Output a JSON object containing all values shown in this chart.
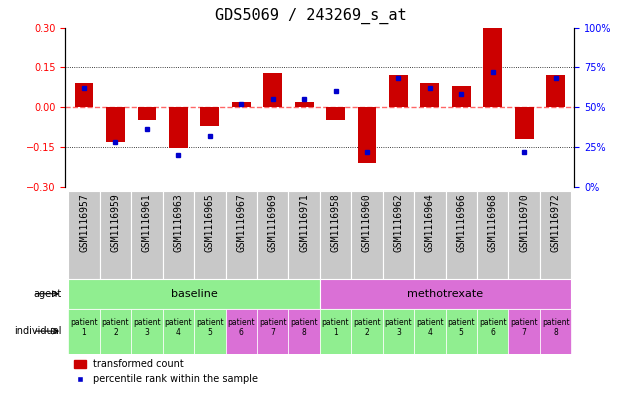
{
  "title": "GDS5069 / 243269_s_at",
  "samples": [
    "GSM1116957",
    "GSM1116959",
    "GSM1116961",
    "GSM1116963",
    "GSM1116965",
    "GSM1116967",
    "GSM1116969",
    "GSM1116971",
    "GSM1116958",
    "GSM1116960",
    "GSM1116962",
    "GSM1116964",
    "GSM1116966",
    "GSM1116968",
    "GSM1116970",
    "GSM1116972"
  ],
  "red_values": [
    0.09,
    -0.13,
    -0.05,
    -0.155,
    -0.07,
    0.02,
    0.13,
    0.02,
    -0.05,
    -0.21,
    0.12,
    0.09,
    0.08,
    0.3,
    -0.12,
    0.12
  ],
  "blue_percentiles": [
    62,
    28,
    36,
    20,
    32,
    52,
    55,
    55,
    60,
    22,
    68,
    62,
    58,
    72,
    22,
    68
  ],
  "ylim": [
    -0.3,
    0.3
  ],
  "right_ylim": [
    0,
    100
  ],
  "yticks_left": [
    -0.3,
    -0.15,
    0.0,
    0.15,
    0.3
  ],
  "yticks_right": [
    0,
    25,
    50,
    75,
    100
  ],
  "hline_dotted": [
    0.15,
    -0.15
  ],
  "bar_width": 0.6,
  "red_bar_color": "#CC0000",
  "blue_sq_color": "#0000CC",
  "zero_line_color": "#FF6666",
  "dotted_line_color": "#000000",
  "sample_bg_color": "#C8C8C8",
  "baseline_color": "#90EE90",
  "methotrexate_color": "#DA70D6",
  "agent_labels": [
    "baseline",
    "methotrexate"
  ],
  "legend_red": "transformed count",
  "legend_blue": "percentile rank within the sample",
  "font_size_title": 11,
  "font_size_ticks": 7,
  "font_size_labels": 7,
  "font_size_agent": 8,
  "font_size_individual": 5.5,
  "n_baseline": 8,
  "n_methotrexate": 8
}
